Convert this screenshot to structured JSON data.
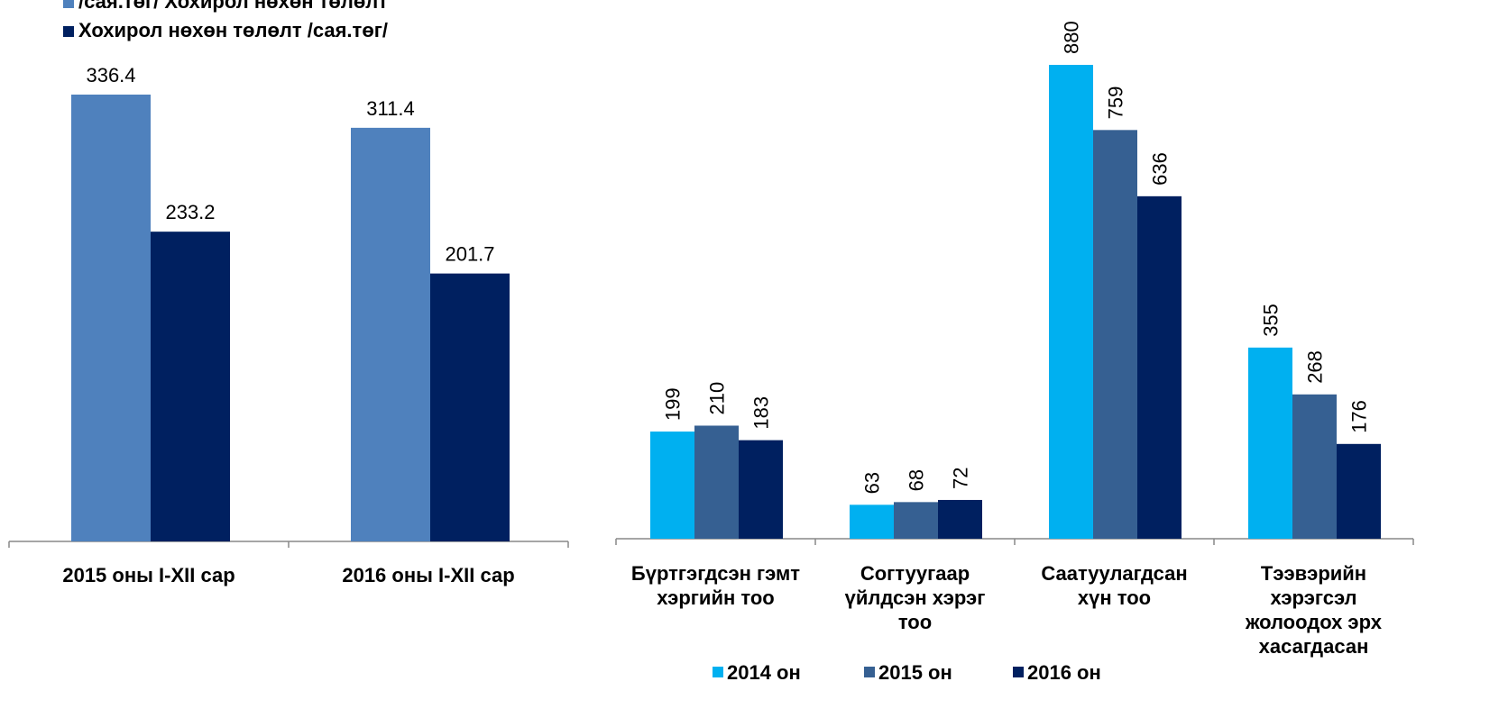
{
  "chart_data": [
    {
      "type": "bar",
      "categories": [
        "2015 оны I-XII сар",
        "2016 оны  I-XII сар"
      ],
      "series": [
        {
          "name": "/сая.төг/ Хохирол нөхөн төлөлт",
          "color": "#4f81bd",
          "values": [
            336.4,
            311.4
          ]
        },
        {
          "name": "Хохирол нөхөн төлөлт  /сая.төг/",
          "color": "#002060",
          "values": [
            233.2,
            201.7
          ]
        }
      ],
      "legend": "top-left"
    },
    {
      "type": "bar",
      "categories": [
        [
          "Бүртгэгдсэн гэмт",
          "хэргийн тоо"
        ],
        [
          "Согтуугаар",
          "үйлдсэн хэрэг",
          "тоо"
        ],
        [
          "Саатуулагдсан",
          "хүн  тоо"
        ],
        [
          "Тээвэрийн",
          "хэрэгсэл",
          "жолоодох эрх",
          "хасагдасан"
        ]
      ],
      "series": [
        {
          "name": "2014 он",
          "color": "#00b0f0",
          "values": [
            199,
            63,
            880,
            355
          ]
        },
        {
          "name": "2015 он",
          "color": "#366092",
          "values": [
            210,
            68,
            759,
            268
          ]
        },
        {
          "name": "2016 он",
          "color": "#002060",
          "values": [
            183,
            72,
            636,
            176
          ]
        }
      ],
      "legend": "bottom"
    }
  ]
}
